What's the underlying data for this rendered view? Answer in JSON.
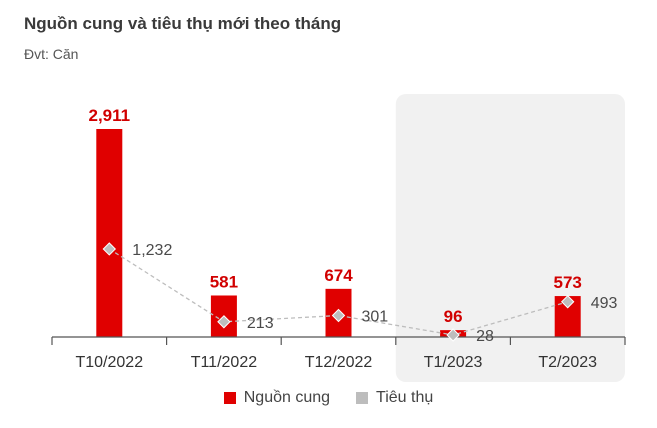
{
  "title": "Nguồn cung và tiêu thụ mới theo tháng",
  "unit_label": "Đvt: Căn",
  "colors": {
    "supply": "#e00000",
    "consumption": "#bdbdbd",
    "highlight_bg": "#f1f1f1",
    "axis": "#555555",
    "supply_label": "#d10000",
    "consumption_label": "#4a4a4a"
  },
  "chart_data": {
    "type": "bar",
    "title": "Nguồn cung và tiêu thụ mới theo tháng",
    "categories": [
      "T10/2022",
      "T11/2022",
      "T12/2022",
      "T1/2023",
      "T2/2023"
    ],
    "series": [
      {
        "name": "Nguồn cung",
        "type": "bar",
        "values": [
          2911,
          581,
          674,
          96,
          573
        ]
      },
      {
        "name": "Tiêu thụ",
        "type": "line",
        "values": [
          1232,
          213,
          301,
          28,
          493
        ]
      }
    ],
    "value_labels": {
      "supply": [
        "2,911",
        "581",
        "674",
        "96",
        "573"
      ],
      "consumption": [
        "1,232",
        "213",
        "301",
        "28",
        "493"
      ]
    },
    "highlighted_categories": [
      "T1/2023",
      "T2/2023"
    ],
    "ylim": [
      0,
      2911
    ],
    "grid": false,
    "legend_position": "bottom"
  },
  "legend": {
    "items": [
      {
        "label": "Nguồn cung",
        "color": "#e00000"
      },
      {
        "label": "Tiêu thụ",
        "color": "#bdbdbd"
      }
    ]
  }
}
